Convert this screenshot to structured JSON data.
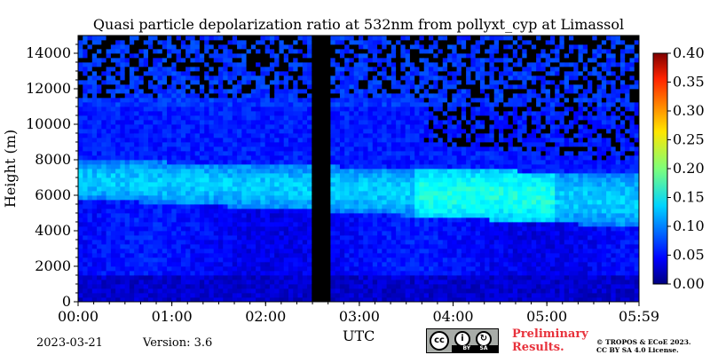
{
  "chart_data": {
    "type": "heatmap",
    "title": "Quasi particle depolarization ratio at 532nm from pollyxt_cyp at Limassol",
    "xlabel": "UTC",
    "ylabel": "Height (m)",
    "x_tick_labels": [
      "00:00",
      "01:00",
      "02:00",
      "03:00",
      "04:00",
      "05:00",
      "05:59"
    ],
    "x_tick_hours": [
      0,
      1,
      2,
      3,
      4,
      5,
      5.983
    ],
    "xlim_hours": [
      0,
      5.983
    ],
    "y_ticks": [
      0,
      2000,
      4000,
      6000,
      8000,
      10000,
      12000,
      14000
    ],
    "ylim": [
      0,
      15000
    ],
    "colorbar": {
      "range": [
        0,
        0.4
      ],
      "ticks": [
        "0.00",
        "0.05",
        "0.10",
        "0.15",
        "0.20",
        "0.25",
        "0.30",
        "0.35",
        "0.40"
      ],
      "colormap": "jet"
    },
    "no_data_gap_hours": [
      2.5,
      2.67
    ],
    "features": [
      {
        "name": "dust layer",
        "bottom_m_start": 5800,
        "top_m_start": 8000,
        "bottom_m_end": 4200,
        "top_m_end": 7200,
        "value": 0.12
      },
      {
        "name": "lower layer",
        "bottom_m": 0,
        "top_m": 4500,
        "value": 0.05
      },
      {
        "name": "noisy upper region",
        "above_m": 10500,
        "value": 0.08
      }
    ]
  },
  "footer": {
    "date": "2023-03-21",
    "version": "Version: 3.6",
    "preliminary_line1": "Preliminary",
    "preliminary_line2": "Results.",
    "copyright_line1": "© TROPOS & ECoE 2023.",
    "copyright_line2": "CC BY SA 4.0 License.",
    "badge_cc": "cc",
    "badge_by": "BY",
    "badge_sa": "SA"
  }
}
